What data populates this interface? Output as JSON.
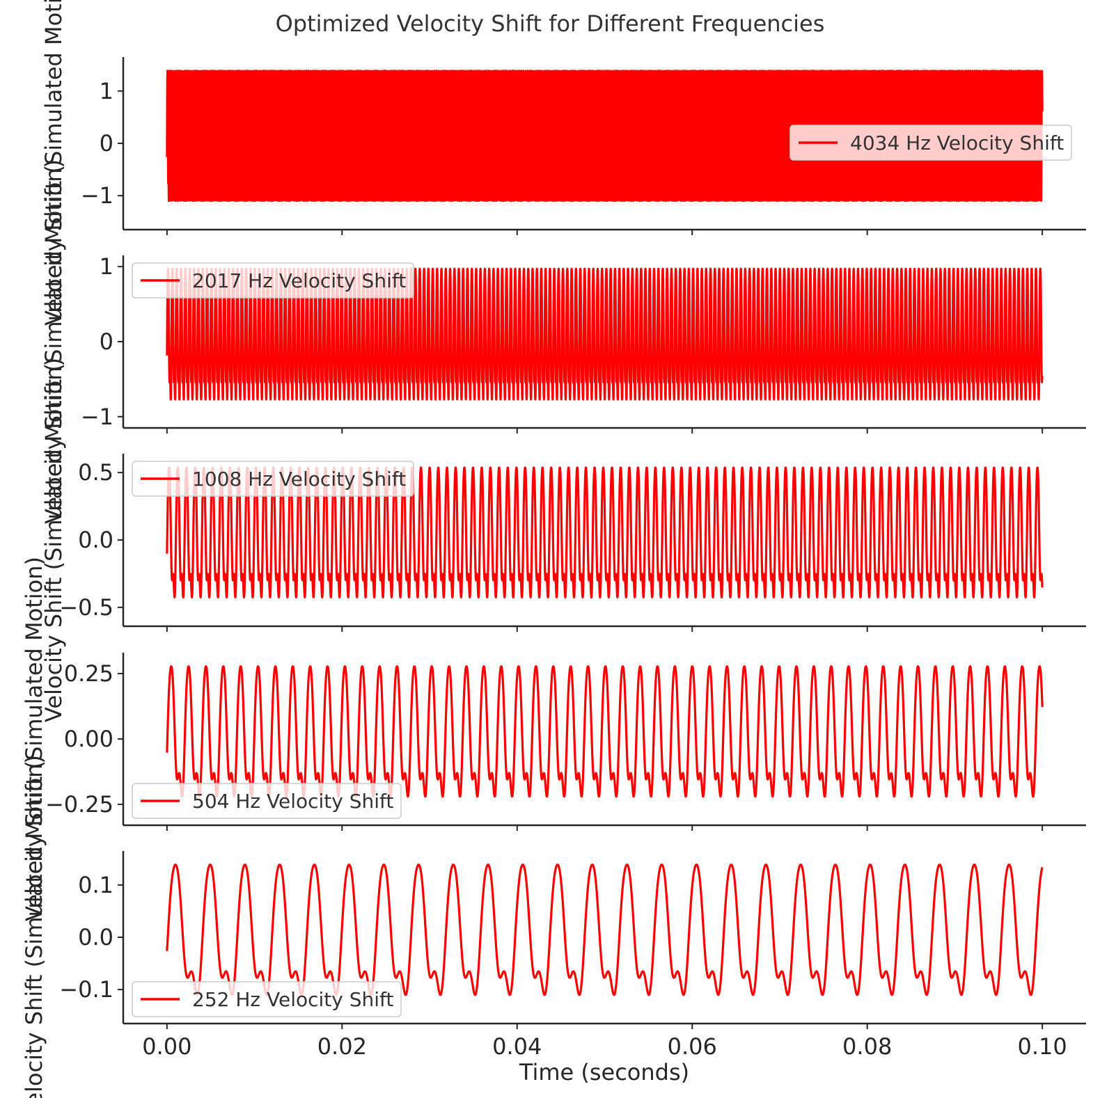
{
  "chart_data": {
    "type": "line",
    "title": "Optimized Velocity Shift for Different Frequencies",
    "xlabel": "Time (seconds)",
    "ylabel": "Velocity Shift (Simulated Motion)",
    "xlim": [
      -0.005,
      0.105
    ],
    "x_ticks": [
      0.0,
      0.02,
      0.04,
      0.06,
      0.08,
      0.1
    ],
    "x_tick_labels": [
      "0.00",
      "0.02",
      "0.04",
      "0.06",
      "0.08",
      "0.10"
    ],
    "t_range": [
      0,
      0.1
    ],
    "line_color": "#ff0000",
    "grid": false,
    "subplots": [
      {
        "name": "4034 Hz Velocity Shift",
        "frequency_hz": 4034,
        "amplitude": 1.5,
        "ylim": [
          -1.65,
          1.65
        ],
        "y_ticks": [
          1,
          0,
          -1
        ],
        "y_tick_labels": [
          "1",
          "0",
          "−1"
        ],
        "legend_position": "center-right"
      },
      {
        "name": "2017 Hz Velocity Shift",
        "frequency_hz": 2017,
        "amplitude": 1.05,
        "ylim": [
          -1.15,
          1.15
        ],
        "y_ticks": [
          1,
          0,
          -1
        ],
        "y_tick_labels": [
          "1",
          "0",
          "−1"
        ],
        "legend_position": "upper-left"
      },
      {
        "name": "1008 Hz Velocity Shift",
        "frequency_hz": 1008,
        "amplitude": 0.58,
        "ylim": [
          -0.64,
          0.64
        ],
        "y_ticks": [
          0.5,
          0.0,
          -0.5
        ],
        "y_tick_labels": [
          "0.5",
          "0.0",
          "−0.5"
        ],
        "legend_position": "upper-left"
      },
      {
        "name": "504 Hz Velocity Shift",
        "frequency_hz": 504,
        "amplitude": 0.3,
        "ylim": [
          -0.33,
          0.33
        ],
        "y_ticks": [
          0.25,
          0.0,
          -0.25
        ],
        "y_tick_labels": [
          "0.25",
          "0.00",
          "−0.25"
        ],
        "legend_position": "lower-left"
      },
      {
        "name": "252 Hz Velocity Shift",
        "frequency_hz": 252,
        "amplitude": 0.15,
        "ylim": [
          -0.165,
          0.165
        ],
        "y_ticks": [
          0.1,
          0.0,
          -0.1
        ],
        "y_tick_labels": [
          "0.1",
          "0.0",
          "−0.1"
        ],
        "legend_position": "lower-left"
      }
    ]
  }
}
